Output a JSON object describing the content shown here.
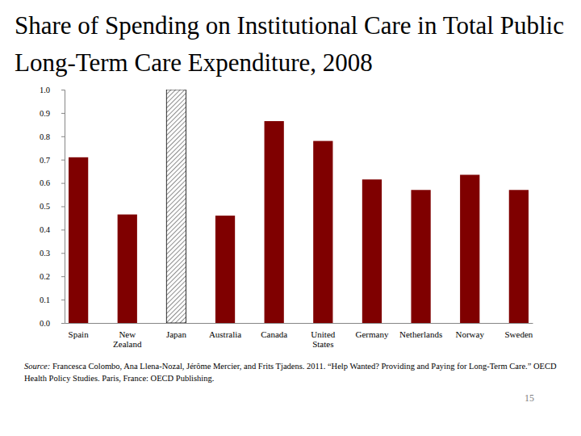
{
  "chart_data": {
    "type": "bar",
    "title": "Share of Spending on Institutional Care in Total Public Long-Term Care Expenditure, 2008",
    "categories": [
      "Spain",
      "New Zealand",
      "Japan",
      "Australia",
      "Canada",
      "United States",
      "Germany",
      "Netherlands",
      "Norway",
      "Sweden"
    ],
    "values": [
      0.71,
      0.465,
      1.0,
      0.46,
      0.865,
      0.78,
      0.615,
      0.57,
      0.635,
      0.57
    ],
    "color": "#7f0000",
    "colors": [
      "#7f0000",
      "#7f0000",
      "#404040",
      "#7f0000",
      "#7f0000",
      "#7f0000",
      "#7f0000",
      "#7f0000",
      "#7f0000",
      "#7f0000"
    ],
    "ylim": [
      0,
      1
    ],
    "yticks": [
      {
        "value": 0,
        "label": "0.0"
      },
      0.1,
      0.2,
      0.3,
      0.4,
      0.5,
      0.6,
      0.7,
      0.8,
      0.9,
      {
        "value": 1,
        "label": "1.0"
      }
    ],
    "grid": false,
    "source_prefix": "Source:",
    "source": "Francesca Colombo, Ana Llena-Nozal, Jérôme Mercier, and Frits Tjadens. 2011. “Help Wanted? Providing and Paying for Long-Term Care.” OECD Health Policy Studies. Paris, France: OECD Publishing.",
    "page_number": "15"
  }
}
